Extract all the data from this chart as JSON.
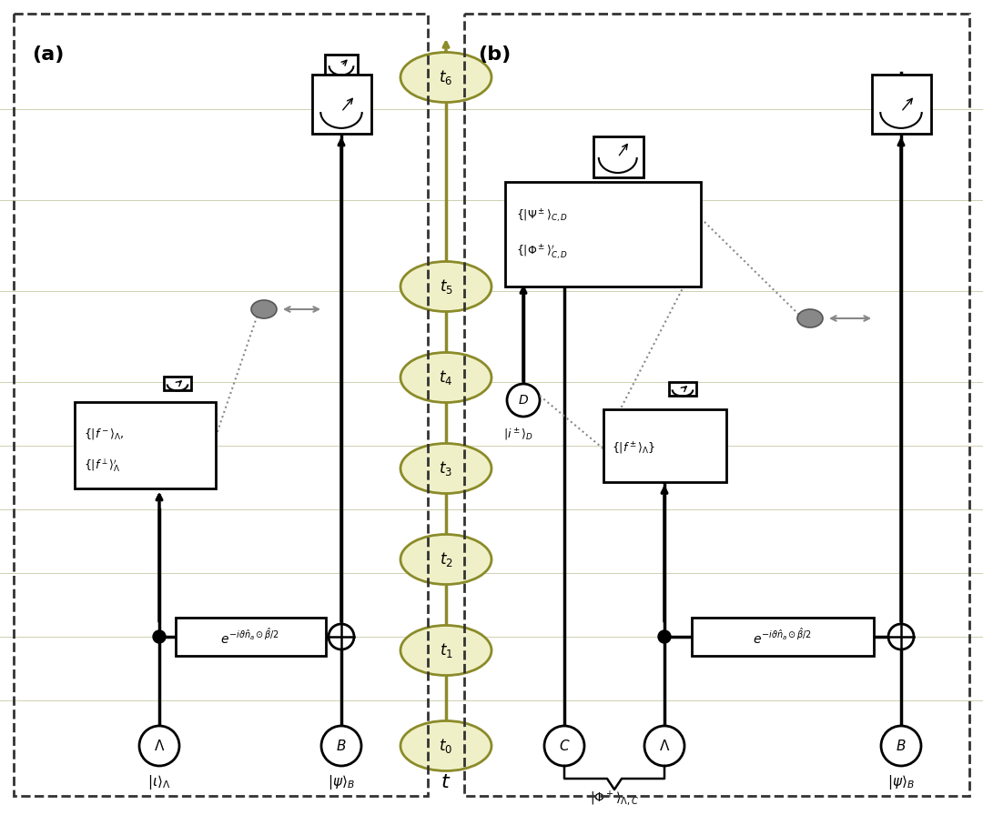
{
  "background_color": "#ffffff",
  "panel_a_label": "(a)",
  "panel_b_label": "(b)",
  "timeline_color": "#8b8b2a",
  "timeline_ellipse_fill": "#f0f0c8",
  "timeline_nodes": [
    "$t_0$",
    "$t_1$",
    "$t_2$",
    "$t_3$",
    "$t_4$",
    "$t_5$",
    "$t_6$"
  ],
  "wire_color": "#000000",
  "dotted_color": "#888888",
  "hline_color": "#d0d0b0",
  "border_color": "#333333"
}
